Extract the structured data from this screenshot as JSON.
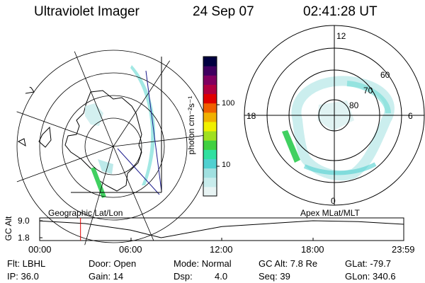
{
  "header": {
    "instrument": "Ultraviolet Imager",
    "date": "24 Sep 07",
    "time": "02:41:28 UT"
  },
  "colorbar": {
    "unit_label": "photon cm⁻²s⁻¹",
    "ticks": [
      "100",
      "10"
    ],
    "scale": "log",
    "colors": [
      "#e8f4f4",
      "#c8ecec",
      "#a0e0e0",
      "#50d0d0",
      "#30e0a0",
      "#40d040",
      "#a0e020",
      "#f0f000",
      "#f0b000",
      "#f06000",
      "#e00000",
      "#b00040",
      "#800060",
      "#400060",
      "#000040"
    ]
  },
  "left_panel": {
    "caption": "Geographic Lat/Lon",
    "aurora_color": "#70dcd6"
  },
  "right_panel": {
    "caption": "Apex MLat/MLT",
    "lat_labels": [
      "80",
      "70",
      "60"
    ],
    "mlt_labels": {
      "top": "12",
      "left": "18",
      "right": "6",
      "bottom": "0"
    }
  },
  "timeline": {
    "ylabel": "GC Alt",
    "y_ticks": [
      "9.0",
      "1.8"
    ],
    "x_ticks": [
      "00:00",
      "06:00",
      "12:00",
      "18:00",
      "23:59"
    ],
    "marker_color": "#e00000"
  },
  "chart_data": {
    "type": "line",
    "title": "",
    "xlabel": "",
    "ylabel": "GC Alt",
    "x": [
      "00:00",
      "03:00",
      "06:00",
      "08:00",
      "12:00",
      "18:00",
      "21:00",
      "23:59"
    ],
    "values": [
      8.9,
      7.8,
      5.0,
      1.8,
      6.5,
      9.0,
      8.6,
      7.5
    ],
    "ylim": [
      1.8,
      9.0
    ],
    "marker_time": "02:41:28"
  },
  "info": {
    "flt": "Flt: LBHL",
    "ip": "IP: 36.0",
    "door": "Door: Open",
    "gain": "Gain: 14",
    "mode": "Mode: Normal",
    "dsp": "Dsp:",
    "dsp_value": "4.0",
    "gc_alt": "GC Alt: 7.8 Re",
    "seq": "Seq: 39",
    "glat": "GLat: -79.7",
    "glon": "GLon: 340.6"
  }
}
